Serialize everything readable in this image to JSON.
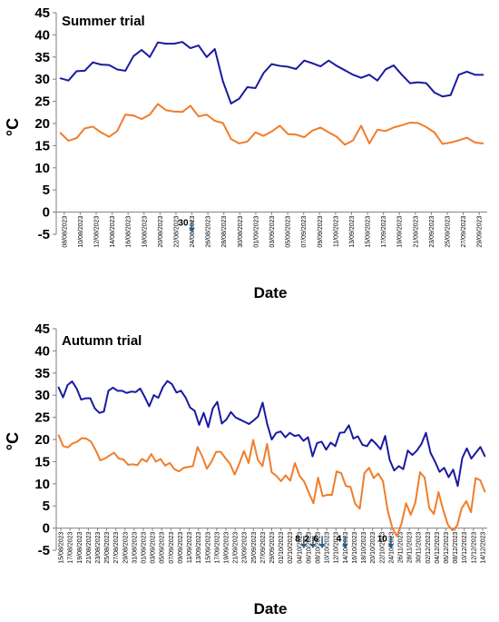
{
  "chart_data": [
    {
      "type": "line",
      "title": "Summer trial",
      "ylabel": "°C",
      "xlabel": "Date",
      "ylim": [
        -5,
        45
      ],
      "yticks": [
        -5,
        0,
        5,
        10,
        15,
        20,
        25,
        30,
        35,
        40,
        45
      ],
      "grid": false,
      "legend": "none",
      "colors": {
        "max": "#1a1aa0",
        "min": "#f07d2a",
        "arrow": "#2b5b84"
      },
      "x_tick_labels": [
        "08/08/2023",
        "10/08/2023",
        "12/08/2023",
        "14/08/2023",
        "16/08/2023",
        "18/08/2023",
        "20/08/2023",
        "22/08/2023",
        "24/08/2023",
        "26/08/2023",
        "28/08/2023",
        "30/08/2023",
        "01/09/2023",
        "03/09/2023",
        "05/09/2023",
        "07/09/2023",
        "09/09/2023",
        "11/09/2023",
        "13/09/2023",
        "15/09/2023",
        "17/09/2023",
        "19/09/2023",
        "21/09/2023",
        "23/09/2023",
        "25/09/2023",
        "27/09/2023",
        "29/09/2023"
      ],
      "series": [
        {
          "values": [
            30.2,
            29.7,
            31.8,
            31.9,
            33.8,
            33.3,
            33.2,
            32.2,
            31.9,
            35.2,
            36.6,
            35.0,
            38.3,
            38.0,
            38.0,
            38.4,
            37.0,
            37.6,
            35.0,
            36.8,
            29.5,
            24.5,
            25.6,
            28.2,
            28.0,
            31.4,
            33.4,
            33.0,
            32.8,
            32.3,
            34.2,
            33.6,
            32.9,
            34.2,
            33.0,
            32.0,
            31.0,
            30.3,
            31.0,
            29.7,
            32.2,
            33.1,
            31.0,
            29.1,
            29.3,
            29.1,
            27.0,
            26.1,
            26.4,
            31.0,
            31.7,
            31.0,
            31.0
          ]
        },
        {
          "values": [
            17.9,
            16.1,
            16.7,
            18.9,
            19.3,
            18.0,
            17.0,
            18.3,
            22.0,
            21.8,
            21.0,
            22.0,
            24.4,
            23.0,
            22.7,
            22.6,
            24.0,
            21.6,
            22.0,
            20.6,
            20.1,
            16.5,
            15.5,
            15.9,
            18.0,
            17.2,
            18.2,
            19.5,
            17.6,
            17.5,
            16.9,
            18.4,
            19.1,
            18.0,
            17.0,
            15.2,
            16.2,
            19.5,
            15.5,
            18.6,
            18.3,
            19.1,
            19.6,
            20.2,
            20.1,
            19.2,
            18.0,
            15.4,
            15.7,
            16.2,
            16.8,
            15.7,
            15.5
          ]
        }
      ],
      "annotations": [
        {
          "label": "30",
          "date": "24/08/2023"
        }
      ]
    },
    {
      "type": "line",
      "title": "Autumn trial",
      "ylabel": "°C",
      "xlabel": "Date",
      "ylim": [
        -5,
        45
      ],
      "yticks": [
        -5,
        0,
        5,
        10,
        15,
        20,
        25,
        30,
        35,
        40,
        45
      ],
      "grid": false,
      "legend": "none",
      "colors": {
        "max": "#1a1aa0",
        "min": "#f07d2a",
        "arrow": "#2b5b84"
      },
      "x_tick_labels": [
        "15/08/2023",
        "17/08/2023",
        "19/08/2023",
        "21/08/2023",
        "23/08/2023",
        "25/08/2023",
        "27/08/2023",
        "29/08/2023",
        "31/08/2023",
        "01/09/2023",
        "03/09/2023",
        "05/09/2023",
        "07/09/2023",
        "09/09/2023",
        "11/09/2023",
        "13/09/2023",
        "15/09/2023",
        "17/09/2023",
        "19/09/2023",
        "21/09/2023",
        "23/09/2023",
        "25/09/2023",
        "27/09/2023",
        "29/09/2023",
        "01/10/2023",
        "02/10/2023",
        "04/10/2023",
        "06/10/2023",
        "08/10/2023",
        "10/10/2023",
        "12/10/2023",
        "14/10/2023",
        "16/10/2023",
        "18/10/2023",
        "20/10/2023",
        "22/10/2023",
        "24/10/2023",
        "26/11/2023",
        "28/11/2023",
        "30/11/2023",
        "02/12/2023",
        "04/12/2023",
        "06/12/2023",
        "08/12/2023",
        "10/12/2023",
        "12/12/2023",
        "14/12/2023"
      ],
      "series": [
        {
          "values": [
            31.8,
            29.5,
            32.3,
            33.1,
            31.5,
            29.0,
            29.3,
            29.3,
            27.0,
            26.0,
            26.3,
            31.0,
            31.7,
            31.0,
            31.0,
            30.5,
            30.8,
            30.7,
            31.5,
            29.6,
            27.5,
            30.0,
            29.4,
            31.8,
            33.2,
            32.5,
            30.6,
            31.0,
            29.5,
            27.2,
            26.5,
            23.3,
            26.0,
            22.8,
            27.0,
            28.5,
            23.6,
            24.5,
            26.2,
            25.0,
            24.5,
            24.0,
            23.5,
            24.3,
            25.2,
            28.3,
            23.5,
            20.0,
            21.5,
            21.8,
            20.5,
            21.5,
            20.8,
            21.0,
            19.7,
            20.5,
            16.2,
            19.2,
            19.5,
            17.7,
            19.3,
            18.5,
            21.5,
            21.6,
            23.2,
            20.2,
            20.7,
            18.8,
            18.5,
            20.0,
            19.0,
            17.8,
            20.8,
            15.4,
            13.0,
            14.0,
            13.3,
            17.5,
            16.5,
            17.5,
            19.0,
            21.5,
            17.0,
            15.0,
            12.7,
            13.6,
            11.5,
            13.2,
            9.5,
            15.8,
            18.0,
            15.7,
            17.0,
            18.3,
            16.2
          ]
        },
        {
          "values": [
            21.0,
            18.5,
            18.2,
            19.1,
            19.5,
            20.3,
            20.2,
            19.5,
            17.6,
            15.3,
            15.7,
            16.4,
            17.0,
            15.7,
            15.5,
            14.3,
            14.4,
            14.2,
            15.6,
            15.0,
            16.7,
            15.0,
            15.6,
            14.1,
            14.7,
            13.3,
            12.8,
            13.6,
            13.8,
            14.0,
            18.3,
            16.2,
            13.4,
            15.0,
            17.2,
            17.2,
            15.8,
            14.5,
            12.1,
            14.5,
            17.4,
            14.7,
            19.9,
            15.4,
            14.0,
            19.0,
            12.6,
            11.8,
            10.6,
            11.9,
            10.7,
            14.7,
            11.8,
            10.5,
            8.0,
            5.6,
            11.4,
            7.2,
            7.5,
            7.5,
            12.8,
            12.4,
            9.5,
            9.3,
            5.5,
            4.4,
            12.4,
            13.6,
            11.3,
            12.3,
            10.6,
            4.1,
            0.1,
            -1.8,
            1.0,
            5.6,
            3.0,
            5.8,
            12.6,
            11.4,
            4.5,
            3.2,
            8.1,
            4.1,
            0.8,
            -0.5,
            0.5,
            4.5,
            6.1,
            3.6,
            11.3,
            10.8,
            8.2
          ]
        }
      ],
      "annotations": [
        {
          "label": "8",
          "date": "05/10/2023"
        },
        {
          "label": "2",
          "date": "07/10/2023"
        },
        {
          "label": "6",
          "date": "09/10/2023"
        },
        {
          "label": "4",
          "date": "14/10/2023"
        },
        {
          "label": "10",
          "date": "24/10/2023"
        }
      ]
    }
  ]
}
